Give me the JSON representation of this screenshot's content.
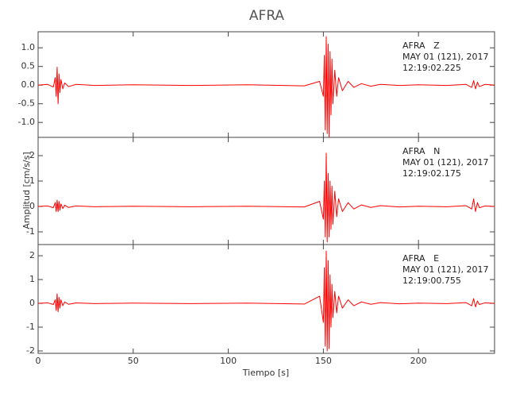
{
  "figure": {
    "title": "AFRA",
    "x_label": "Tiempo [s]",
    "y_label": "Amplitud [cm/s/s]"
  },
  "chart_data": [
    {
      "type": "line",
      "annotations": [
        "AFRA   Z",
        "MAY 01 (121), 2017",
        "12:19:02.225"
      ],
      "xlim": [
        0,
        240
      ],
      "xticks": [
        0,
        50,
        100,
        150,
        200
      ],
      "ylim": [
        -1.4,
        1.43
      ],
      "yticks": [
        {
          "value": -1.0,
          "label": "-1.0"
        },
        -0.5,
        {
          "value": 0.0,
          "label": "0.0"
        },
        0.5,
        {
          "value": 1.0,
          "label": "1.0"
        }
      ],
      "color": "#ff0000",
      "x": [
        0,
        5,
        8,
        9,
        9.5,
        10,
        10.5,
        11,
        11.5,
        12,
        13,
        14,
        16,
        20,
        30,
        50,
        80,
        110,
        140,
        148,
        150,
        150.5,
        151,
        151.5,
        152,
        152.5,
        153,
        153.5,
        154,
        154.5,
        155,
        156,
        157,
        158,
        160,
        163,
        166,
        170,
        175,
        180,
        190,
        200,
        215,
        225,
        228,
        229,
        230,
        231,
        232,
        235,
        240
      ],
      "values": [
        0,
        0.02,
        -0.05,
        0.2,
        -0.3,
        0.48,
        -0.5,
        0.3,
        -0.2,
        0.15,
        -0.1,
        0.06,
        -0.04,
        0.02,
        -0.01,
        0.01,
        -0.01,
        0.01,
        -0.02,
        0.1,
        -0.3,
        0.8,
        -1.2,
        1.3,
        -1.3,
        1.1,
        -1.4,
        0.9,
        -0.8,
        0.7,
        -0.5,
        0.4,
        -0.3,
        0.2,
        -0.15,
        0.1,
        -0.06,
        0.04,
        -0.03,
        0.02,
        -0.01,
        0.01,
        -0.01,
        0.02,
        -0.06,
        0.12,
        -0.1,
        0.08,
        -0.04,
        0.02,
        0
      ]
    },
    {
      "type": "line",
      "annotations": [
        "AFRA   N",
        "MAY 01 (121), 2017",
        "12:19:02.175"
      ],
      "xlim": [
        0,
        240
      ],
      "xticks": [
        0,
        50,
        100,
        150,
        200
      ],
      "ylim": [
        -1.5,
        2.72
      ],
      "yticks": [
        -1,
        0,
        1,
        2
      ],
      "color": "#ff0000",
      "x": [
        0,
        5,
        8,
        9,
        9.5,
        10,
        10.5,
        11,
        11.5,
        12,
        13,
        14,
        16,
        20,
        30,
        50,
        80,
        110,
        140,
        148,
        150,
        150.5,
        151,
        151.5,
        152,
        152.5,
        153,
        153.5,
        154,
        154.5,
        155,
        156,
        157,
        158,
        160,
        163,
        166,
        170,
        175,
        180,
        190,
        200,
        215,
        225,
        228,
        229,
        230,
        231,
        232,
        235,
        240
      ],
      "values": [
        0,
        0.02,
        -0.05,
        0.15,
        -0.2,
        0.25,
        -0.2,
        0.2,
        -0.15,
        0.1,
        -0.08,
        0.05,
        -0.04,
        0.02,
        -0.01,
        0.01,
        -0.01,
        0.01,
        -0.02,
        0.2,
        -0.5,
        1.0,
        -1.2,
        2.1,
        -1.4,
        1.3,
        -1.2,
        1.0,
        -0.9,
        0.8,
        -0.7,
        0.6,
        -0.4,
        0.3,
        -0.2,
        0.15,
        -0.1,
        0.06,
        -0.04,
        0.03,
        -0.02,
        0.01,
        -0.01,
        0.03,
        -0.1,
        0.3,
        -0.2,
        0.15,
        -0.05,
        0.02,
        0
      ]
    },
    {
      "type": "line",
      "annotations": [
        "AFRA   E",
        "MAY 01 (121), 2017",
        "12:19:00.755"
      ],
      "xlim": [
        0,
        240
      ],
      "xticks": [
        0,
        50,
        100,
        150,
        200
      ],
      "ylim": [
        -2.1,
        2.47
      ],
      "yticks": [
        -2,
        -1,
        0,
        1,
        2
      ],
      "color": "#ff0000",
      "x": [
        0,
        5,
        8,
        9,
        9.5,
        10,
        10.5,
        11,
        11.5,
        12,
        13,
        14,
        16,
        20,
        30,
        50,
        80,
        110,
        140,
        148,
        150,
        150.5,
        151,
        151.5,
        152,
        152.5,
        153,
        153.5,
        154,
        154.5,
        155,
        156,
        157,
        158,
        160,
        163,
        166,
        170,
        175,
        180,
        190,
        200,
        215,
        225,
        228,
        229,
        230,
        231,
        232,
        235,
        240
      ],
      "values": [
        0,
        0.02,
        -0.05,
        0.15,
        -0.3,
        0.4,
        -0.35,
        0.25,
        -0.2,
        0.15,
        -0.1,
        0.06,
        -0.04,
        0.02,
        -0.01,
        0.01,
        -0.01,
        0.01,
        -0.03,
        0.3,
        -0.8,
        1.5,
        -1.8,
        2.2,
        -2.0,
        1.8,
        -1.9,
        1.2,
        -1.0,
        0.8,
        -0.6,
        0.5,
        -0.4,
        0.3,
        -0.2,
        0.15,
        -0.1,
        0.06,
        -0.04,
        0.03,
        -0.02,
        0.01,
        -0.01,
        0.03,
        -0.1,
        0.2,
        -0.15,
        0.1,
        -0.05,
        0.02,
        0
      ]
    }
  ]
}
